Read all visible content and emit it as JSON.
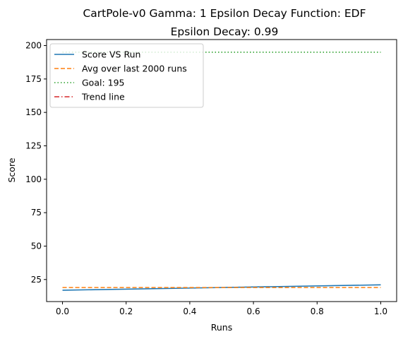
{
  "chart_data": {
    "type": "line",
    "title": "CartPole-v0 Gamma: 1 Epsilon Decay Function: EDF",
    "subtitle": "Epsilon Decay: 0.99",
    "xlabel": "Runs",
    "ylabel": "Score",
    "xlim": [
      -0.05,
      1.05
    ],
    "ylim": [
      8.5,
      204.5
    ],
    "xticks": [
      0.0,
      0.2,
      0.4,
      0.6,
      0.8,
      1.0
    ],
    "xtick_labels": [
      "0.0",
      "0.2",
      "0.4",
      "0.6",
      "0.8",
      "1.0"
    ],
    "yticks": [
      25,
      50,
      75,
      100,
      125,
      150,
      175,
      200
    ],
    "ytick_labels": [
      "25",
      "50",
      "75",
      "100",
      "125",
      "150",
      "175",
      "200"
    ],
    "grid": false,
    "legend_position": "top-left",
    "series": [
      {
        "name": "Score VS Run",
        "style": "solid",
        "color": "#1f77b4",
        "x": [
          0,
          1
        ],
        "y": [
          17,
          21
        ]
      },
      {
        "name": "Avg over last 2000 runs",
        "style": "dashed",
        "color": "#ff7f0e",
        "x": [
          0,
          1
        ],
        "y": [
          19,
          19
        ]
      },
      {
        "name": "Goal: 195",
        "style": "dotted",
        "color": "#2ca02c",
        "x": [
          0,
          1
        ],
        "y": [
          195,
          195
        ]
      },
      {
        "name": "Trend line",
        "style": "dashdot",
        "color": "#d62728",
        "x": [],
        "y": []
      }
    ]
  }
}
